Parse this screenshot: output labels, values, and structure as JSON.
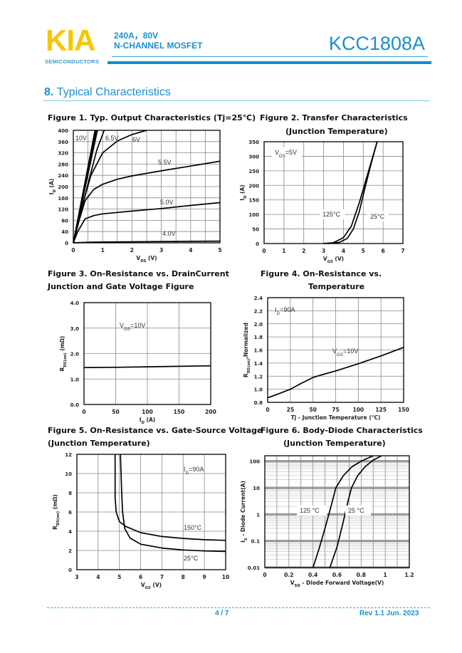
{
  "header": {
    "logo": "KIA",
    "logo_sub": "SEMICONDUCTORS",
    "spec_line1": "240A，80V",
    "spec_line2": "N-CHANNEL MOSFET",
    "part_number": "KCC1808A",
    "brand_color": "#1b8fcf",
    "logo_color": "#f7c600"
  },
  "section": {
    "number": "8.",
    "title": "Typical Characteristics"
  },
  "figures": [
    {
      "title": "Figure 1. Typ. Output Characteristics (Tj=25℃)",
      "subtitle": ""
    },
    {
      "title": "Figure 2. Transfer Characteristics",
      "subtitle": "(Junction Temperature)"
    },
    {
      "title": "Figure 3. On-Resistance vs. DrainCurrent",
      "subtitle": "Junction and Gate Voltage Figure"
    },
    {
      "title": "Figure 4. On-Resistance vs.",
      "subtitle": "Temperature"
    },
    {
      "title": "Figure 5. On-Resistance vs. Gate-Source Voltage",
      "subtitle": "(Junction Temperature)"
    },
    {
      "title": "Figure 6. Body-Diode Characteristics",
      "subtitle": "(Junction Temperature)"
    }
  ],
  "chart_data": [
    {
      "type": "line",
      "grid": true,
      "xlabel": {
        "t": "V",
        "s": "DS",
        "u": " (V)"
      },
      "ylabel": {
        "t": "I",
        "s": "D",
        "u": " (A)"
      },
      "xlim": [
        0,
        5
      ],
      "ylim": [
        0,
        400
      ],
      "xticks": [
        0,
        1,
        2,
        3,
        4,
        5
      ],
      "yticks": [
        0,
        40,
        80,
        120,
        160,
        200,
        240,
        280,
        320,
        360,
        400
      ],
      "xgrid": [
        0.5,
        1,
        1.5,
        2,
        2.5,
        3,
        3.5,
        4,
        4.5
      ],
      "ygrid": [
        40,
        80,
        120,
        160,
        200,
        240,
        280,
        320,
        360
      ],
      "series": [
        {
          "name": "10V",
          "points": [
            [
              0,
              0
            ],
            [
              0.74,
              400
            ]
          ]
        },
        {
          "name": "",
          "points": [
            [
              0,
              0
            ],
            [
              0.78,
              400
            ]
          ]
        },
        {
          "name": "",
          "points": [
            [
              0,
              0
            ],
            [
              0.82,
              400
            ]
          ]
        },
        {
          "name": "6.5V",
          "points": [
            [
              0,
              0
            ],
            [
              0.5,
              210
            ],
            [
              0.8,
              330
            ],
            [
              1.05,
              400
            ]
          ]
        },
        {
          "name": "6V",
          "points": [
            [
              0,
              0
            ],
            [
              0.3,
              130
            ],
            [
              0.6,
              240
            ],
            [
              1,
              320
            ],
            [
              1.5,
              362
            ],
            [
              2,
              385
            ],
            [
              2.5,
              400
            ]
          ]
        },
        {
          "name": "5.5V",
          "points": [
            [
              0,
              0
            ],
            [
              0.2,
              80
            ],
            [
              0.4,
              150
            ],
            [
              0.7,
              190
            ],
            [
              1,
              208
            ],
            [
              1.5,
              226
            ],
            [
              2,
              238
            ],
            [
              3,
              256
            ],
            [
              4,
              273
            ],
            [
              5,
              290
            ]
          ]
        },
        {
          "name": "5.0V",
          "points": [
            [
              0,
              0
            ],
            [
              0.15,
              40
            ],
            [
              0.4,
              85
            ],
            [
              0.7,
              97
            ],
            [
              1,
              103
            ],
            [
              2,
              113
            ],
            [
              3,
              122
            ],
            [
              4,
              133
            ],
            [
              5,
              143
            ]
          ]
        },
        {
          "name": "4.0V",
          "points": [
            [
              0,
              0
            ],
            [
              0.5,
              2
            ],
            [
              1,
              3
            ],
            [
              5,
              6
            ]
          ]
        }
      ],
      "annotations": [
        {
          "t": "10V"
        },
        {
          "t": "6.5V"
        },
        {
          "t": "6V"
        },
        {
          "t": "5.5V"
        },
        {
          "t": "5.0V"
        },
        {
          "t": "4.0V"
        }
      ]
    },
    {
      "type": "line",
      "grid": true,
      "xlabel": {
        "t": "V",
        "s": "GS",
        "u": " (V)"
      },
      "ylabel": {
        "t": "I",
        "s": "D",
        "u": " (A)"
      },
      "xlim": [
        0,
        7
      ],
      "ylim": [
        0,
        350
      ],
      "xticks": [
        0,
        1,
        2,
        3,
        4,
        5,
        6,
        7
      ],
      "yticks": [
        0,
        50,
        100,
        150,
        200,
        250,
        300,
        350
      ],
      "xgrid": [
        1,
        2,
        3,
        4,
        5,
        6
      ],
      "ygrid": [
        50,
        100,
        150,
        200,
        250,
        300
      ],
      "series": [
        {
          "name": "125°C",
          "points": [
            [
              3,
              0
            ],
            [
              3.5,
              3
            ],
            [
              4,
              20
            ],
            [
              4.4,
              60
            ],
            [
              4.8,
              140
            ],
            [
              5.1,
              210
            ],
            [
              5.4,
              280
            ],
            [
              5.7,
              350
            ]
          ]
        },
        {
          "name": "25°C",
          "points": [
            [
              3.2,
              0
            ],
            [
              3.8,
              4
            ],
            [
              4.2,
              18
            ],
            [
              4.5,
              50
            ],
            [
              4.8,
              110
            ],
            [
              5.1,
              195
            ],
            [
              5.4,
              275
            ],
            [
              5.7,
              350
            ]
          ]
        }
      ],
      "annotations": [
        {
          "t": "V",
          "s": "DS",
          "u": "=5V"
        },
        {
          "t": "125°C"
        },
        {
          "t": "25°C"
        }
      ]
    },
    {
      "type": "line",
      "grid": true,
      "xlabel": {
        "t": "I",
        "s": "D",
        "u": " (A)"
      },
      "ylabel": {
        "t": "R",
        "s": "DS(on)",
        "u": " (mΩ)"
      },
      "xlim": [
        0,
        200
      ],
      "ylim": [
        0,
        4
      ],
      "xticks": [
        0,
        50,
        100,
        150,
        200
      ],
      "yticks": [
        0,
        1,
        2,
        3,
        4
      ],
      "ytick_labels": [
        "0.0",
        "1.0",
        "2.0",
        "3.0",
        "4.0"
      ],
      "xgrid": [
        50,
        100,
        150
      ],
      "ygrid": [
        1,
        2,
        3
      ],
      "series": [
        {
          "name": "",
          "points": [
            [
              0,
              1.45
            ],
            [
              50,
              1.46
            ],
            [
              100,
              1.48
            ],
            [
              150,
              1.5
            ],
            [
              200,
              1.52
            ]
          ]
        }
      ],
      "annotations": [
        {
          "t": "V",
          "s": "GS",
          "u": "=10V"
        }
      ]
    },
    {
      "type": "line",
      "grid": true,
      "xlabel": {
        "t": "Tj - Junction Temperature (°C)",
        "s": "",
        "u": ""
      },
      "ylabel": {
        "t": "R",
        "s": "DS(on)",
        "u": ",Normalized"
      },
      "xlim": [
        0,
        150
      ],
      "ylim": [
        0.8,
        2.4
      ],
      "xticks": [
        0,
        25,
        50,
        75,
        100,
        125,
        150
      ],
      "yticks": [
        0.8,
        1.0,
        1.2,
        1.4,
        1.6,
        1.8,
        2.0,
        2.2,
        2.4
      ],
      "ytick_labels": [
        "0.8",
        "1.0",
        "1.2",
        "1.4",
        "1.6",
        "1.8",
        "2.0",
        "2.2",
        "2.4"
      ],
      "xgrid": [
        25,
        50,
        75,
        100,
        125
      ],
      "ygrid": [
        1.0,
        1.2,
        1.4,
        1.6,
        1.8,
        2.0,
        2.2
      ],
      "series": [
        {
          "name": "",
          "points": [
            [
              0,
              0.87
            ],
            [
              12,
              0.93
            ],
            [
              25,
              1.0
            ],
            [
              37,
              1.09
            ],
            [
              50,
              1.18
            ],
            [
              62,
              1.23
            ],
            [
              75,
              1.28
            ],
            [
              100,
              1.39
            ],
            [
              125,
              1.51
            ],
            [
              150,
              1.64
            ]
          ]
        }
      ],
      "annotations": [
        {
          "t": "I",
          "s": "D",
          "u": "=90A"
        },
        {
          "t": "V",
          "s": "GS",
          "u": "=10V"
        }
      ]
    },
    {
      "type": "line",
      "grid": true,
      "xlabel": {
        "t": "V",
        "s": "GS",
        "u": " (V)"
      },
      "ylabel": {
        "t": "R",
        "s": "DS(on)",
        "u": " (mΩ)"
      },
      "xlim": [
        3,
        10
      ],
      "ylim": [
        0,
        12
      ],
      "xticks": [
        3,
        4,
        5,
        6,
        7,
        8,
        9,
        10
      ],
      "yticks": [
        0,
        2,
        4,
        6,
        8,
        10,
        12
      ],
      "xgrid": [
        4,
        5,
        6,
        7,
        8,
        9
      ],
      "ygrid": [
        2,
        4,
        6,
        8,
        10
      ],
      "series": [
        {
          "name": "150°C",
          "points": [
            [
              4.8,
              12
            ],
            [
              4.8,
              7.5
            ],
            [
              4.85,
              6
            ],
            [
              5,
              5
            ],
            [
              5.3,
              4.5
            ],
            [
              6,
              3.85
            ],
            [
              7,
              3.45
            ],
            [
              8,
              3.25
            ],
            [
              9,
              3.12
            ],
            [
              10,
              3.05
            ]
          ]
        },
        {
          "name": "25°C",
          "points": [
            [
              5.05,
              12
            ],
            [
              5.1,
              8.5
            ],
            [
              5.15,
              6
            ],
            [
              5.25,
              4.3
            ],
            [
              5.5,
              3.3
            ],
            [
              6,
              2.65
            ],
            [
              7,
              2.25
            ],
            [
              8,
              2.05
            ],
            [
              9,
              1.95
            ],
            [
              10,
              1.9
            ]
          ]
        }
      ],
      "annotations": [
        {
          "t": "I",
          "s": "D",
          "u": "=90A"
        },
        {
          "t": "150°C"
        },
        {
          "t": "25°C"
        }
      ]
    },
    {
      "type": "line",
      "grid": true,
      "yscale": "log",
      "xlabel": {
        "t": "V",
        "s": "SD",
        "u": " - Diode Forward Voltage(V)"
      },
      "ylabel": {
        "t": "I",
        "s": "S",
        "u": " - Diode Current(A)"
      },
      "xlim": [
        0,
        1.2
      ],
      "ylim": [
        0.01,
        160
      ],
      "xticks": [
        0,
        0.2,
        0.4,
        0.6,
        0.8,
        1,
        1.2
      ],
      "xtick_labels": [
        "0",
        "0.2",
        "0.4",
        "0.6",
        "0.8",
        "1",
        "1.2"
      ],
      "yticks": [
        0.01,
        0.1,
        1,
        10,
        100
      ],
      "ytick_labels": [
        "0.01",
        "0.1",
        "1",
        "10",
        "100"
      ],
      "xgrid": [
        0.1,
        0.2,
        0.3,
        0.4,
        0.5,
        0.6,
        0.7,
        0.8,
        0.9,
        1,
        1.1
      ],
      "ygrid": [],
      "series": [
        {
          "name": "125 °C",
          "points": [
            [
              0.4,
              0.01
            ],
            [
              0.45,
              0.05
            ],
            [
              0.5,
              0.3
            ],
            [
              0.55,
              2
            ],
            [
              0.59,
              10
            ],
            [
              0.65,
              28
            ],
            [
              0.72,
              60
            ],
            [
              0.8,
              100
            ],
            [
              0.9,
              160
            ]
          ]
        },
        {
          "name": "25 °C",
          "points": [
            [
              0.54,
              0.01
            ],
            [
              0.6,
              0.06
            ],
            [
              0.65,
              0.5
            ],
            [
              0.69,
              3
            ],
            [
              0.72,
              10
            ],
            [
              0.77,
              28
            ],
            [
              0.83,
              60
            ],
            [
              0.9,
              110
            ],
            [
              0.97,
              160
            ]
          ]
        }
      ],
      "annotations": [
        {
          "t": "125 °C"
        },
        {
          "t": "25 °C"
        }
      ]
    }
  ],
  "footer": {
    "page": "4 / 7",
    "revision": "Rev 1.1   Jun. 2023"
  }
}
